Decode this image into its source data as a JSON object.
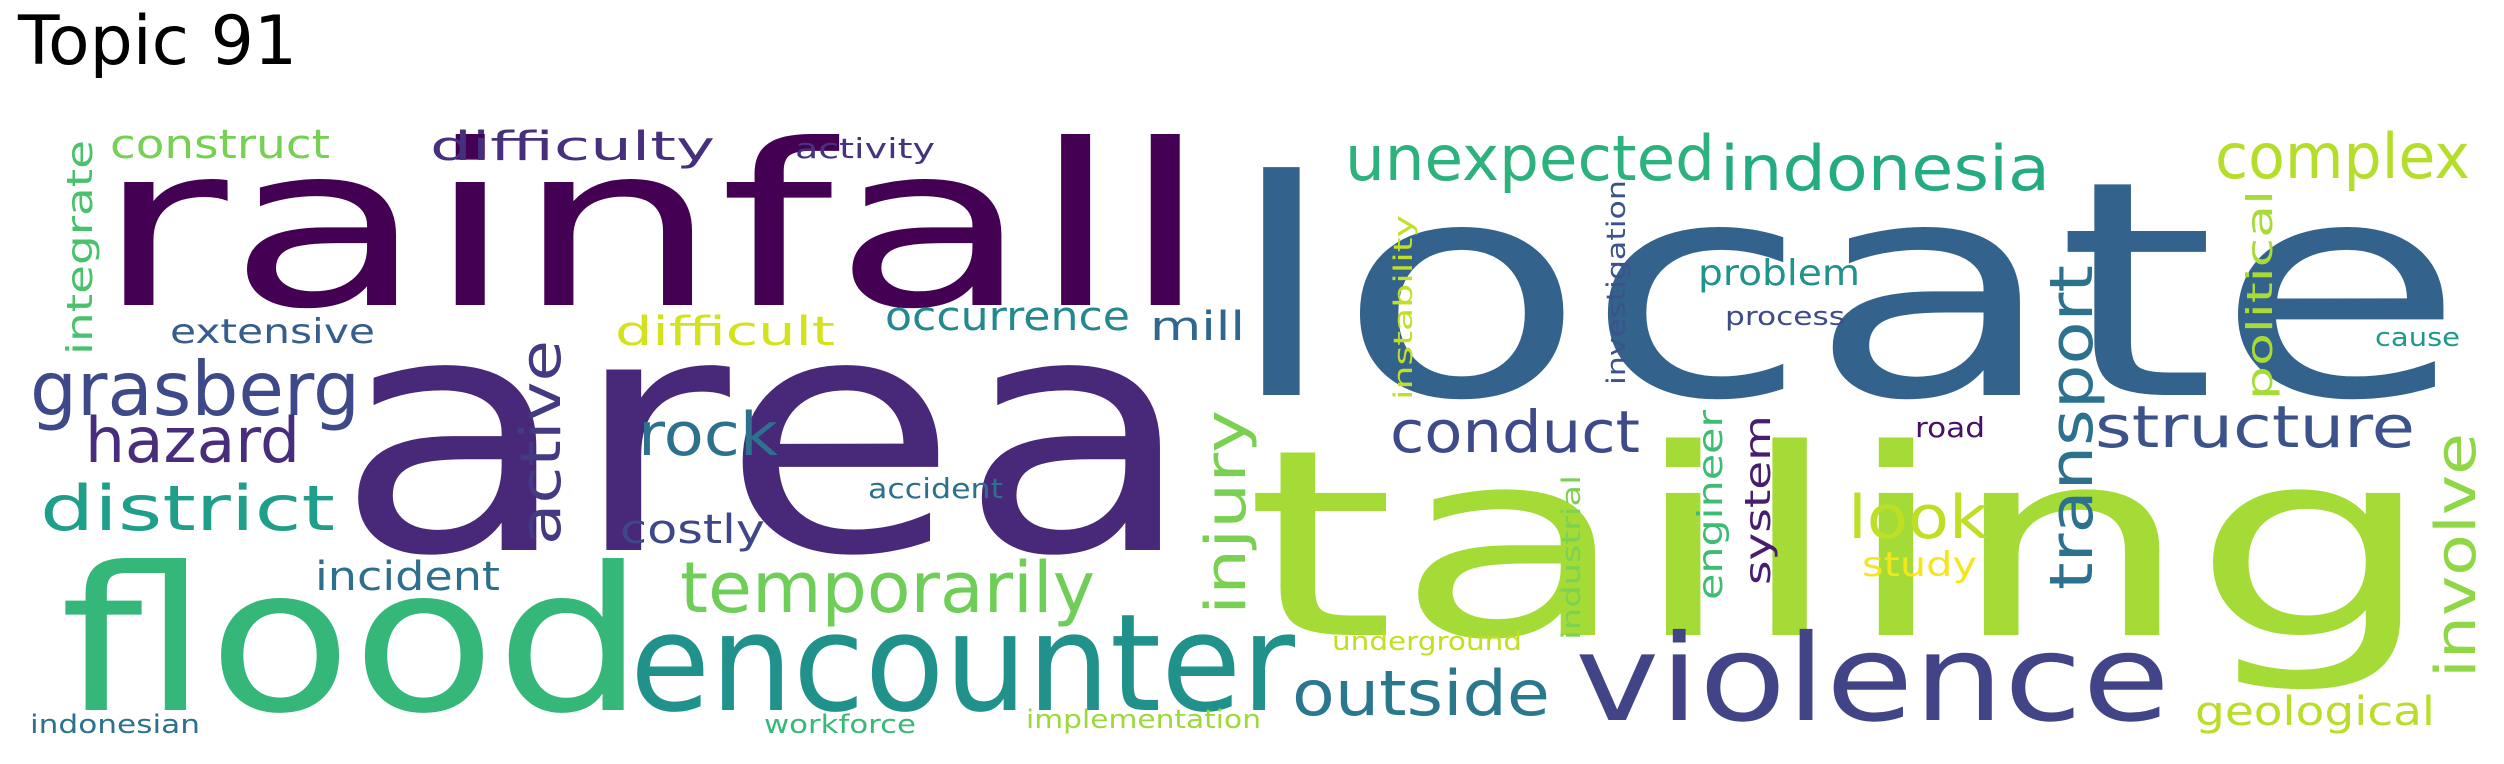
{
  "title": "Topic 91",
  "words": [
    {
      "text": "locate",
      "color": "#33638d"
    },
    {
      "text": "area",
      "color": "#482878"
    },
    {
      "text": "rainfall",
      "color": "#440154"
    },
    {
      "text": "tailing",
      "color": "#a5db36"
    },
    {
      "text": "flood",
      "color": "#35b779"
    },
    {
      "text": "encounter",
      "color": "#21918c"
    },
    {
      "text": "violence",
      "color": "#414487"
    },
    {
      "text": "temporarily",
      "color": "#6ece58"
    },
    {
      "text": "grasberg",
      "color": "#3e4989"
    },
    {
      "text": "unexpected",
      "color": "#2db27d"
    },
    {
      "text": "indonesia",
      "color": "#25ab82"
    },
    {
      "text": "complex",
      "color": "#b5de2b"
    },
    {
      "text": "district",
      "color": "#1f9e89"
    },
    {
      "text": "hazard",
      "color": "#472d7b"
    },
    {
      "text": "outside",
      "color": "#2a788e"
    },
    {
      "text": "structure",
      "color": "#3b528b"
    },
    {
      "text": "conduct",
      "color": "#3e4a89"
    },
    {
      "text": "active",
      "color": "#443a83"
    },
    {
      "text": "injury",
      "color": "#7ad151"
    },
    {
      "text": "rock",
      "color": "#2c728e"
    },
    {
      "text": "look",
      "color": "#bddf26"
    },
    {
      "text": "transport",
      "color": "#2c718e"
    },
    {
      "text": "involve",
      "color": "#8fd744"
    },
    {
      "text": "difficulty",
      "color": "#46307e"
    },
    {
      "text": "construct",
      "color": "#75d054"
    },
    {
      "text": "occurrence",
      "color": "#23898e"
    },
    {
      "text": "difficult",
      "color": "#d2e21b"
    },
    {
      "text": "geological",
      "color": "#b8de29"
    },
    {
      "text": "mill",
      "color": "#31668e"
    },
    {
      "text": "extensive",
      "color": "#365d8d"
    },
    {
      "text": "costly",
      "color": "#3f4788"
    },
    {
      "text": "incident",
      "color": "#2e6f8e"
    },
    {
      "text": "problem",
      "color": "#20938c"
    },
    {
      "text": "integrate",
      "color": "#4ac16d"
    },
    {
      "text": "political",
      "color": "#a8db34"
    },
    {
      "text": "system",
      "color": "#481d6f"
    },
    {
      "text": "engineer",
      "color": "#3dbc74"
    },
    {
      "text": "study",
      "color": "#f4e61e"
    },
    {
      "text": "activity",
      "color": "#46337e"
    },
    {
      "text": "investigation",
      "color": "#3b528b"
    },
    {
      "text": "instability",
      "color": "#c0df25"
    },
    {
      "text": "industrial",
      "color": "#7cd250"
    },
    {
      "text": "accident",
      "color": "#2d708e"
    },
    {
      "text": "process",
      "color": "#3e4c8a"
    },
    {
      "text": "cause",
      "color": "#1f9a8a"
    },
    {
      "text": "road",
      "color": "#471063"
    },
    {
      "text": "underground",
      "color": "#c2df23"
    },
    {
      "text": "implementation",
      "color": "#9dd93b"
    },
    {
      "text": "workforce",
      "color": "#38b977"
    },
    {
      "text": "indonesian",
      "color": "#2c728e"
    }
  ]
}
